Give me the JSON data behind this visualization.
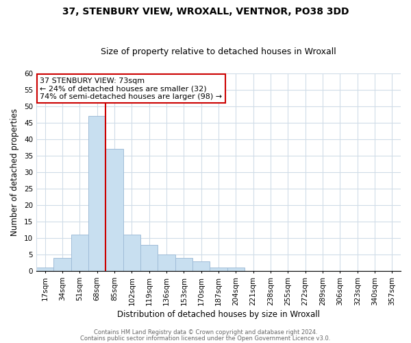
{
  "title": "37, STENBURY VIEW, WROXALL, VENTNOR, PO38 3DD",
  "subtitle": "Size of property relative to detached houses in Wroxall",
  "xlabel": "Distribution of detached houses by size in Wroxall",
  "ylabel": "Number of detached properties",
  "bar_color": "#c8dff0",
  "bar_edge_color": "#a0bdd8",
  "bin_labels": [
    "17sqm",
    "34sqm",
    "51sqm",
    "68sqm",
    "85sqm",
    "102sqm",
    "119sqm",
    "136sqm",
    "153sqm",
    "170sqm",
    "187sqm",
    "204sqm",
    "221sqm",
    "238sqm",
    "255sqm",
    "272sqm",
    "289sqm",
    "306sqm",
    "323sqm",
    "340sqm",
    "357sqm"
  ],
  "bin_values": [
    1,
    4,
    11,
    47,
    37,
    11,
    8,
    5,
    4,
    3,
    1,
    1,
    0,
    0,
    0,
    0,
    0,
    0,
    0,
    0,
    0
  ],
  "ylim": [
    0,
    60
  ],
  "yticks": [
    0,
    5,
    10,
    15,
    20,
    25,
    30,
    35,
    40,
    45,
    50,
    55,
    60
  ],
  "property_line_color": "#cc0000",
  "annotation_text": "37 STENBURY VIEW: 73sqm\n← 24% of detached houses are smaller (32)\n74% of semi-detached houses are larger (98) →",
  "annotation_box_color": "#ffffff",
  "annotation_box_edge_color": "#cc0000",
  "footer_line1": "Contains HM Land Registry data © Crown copyright and database right 2024.",
  "footer_line2": "Contains public sector information licensed under the Open Government Licence v3.0.",
  "grid_color": "#d0dce8",
  "background_color": "#ffffff",
  "title_fontsize": 10,
  "subtitle_fontsize": 9,
  "axis_label_fontsize": 8.5,
  "tick_fontsize": 7.5,
  "annotation_fontsize": 8,
  "footer_fontsize": 6
}
